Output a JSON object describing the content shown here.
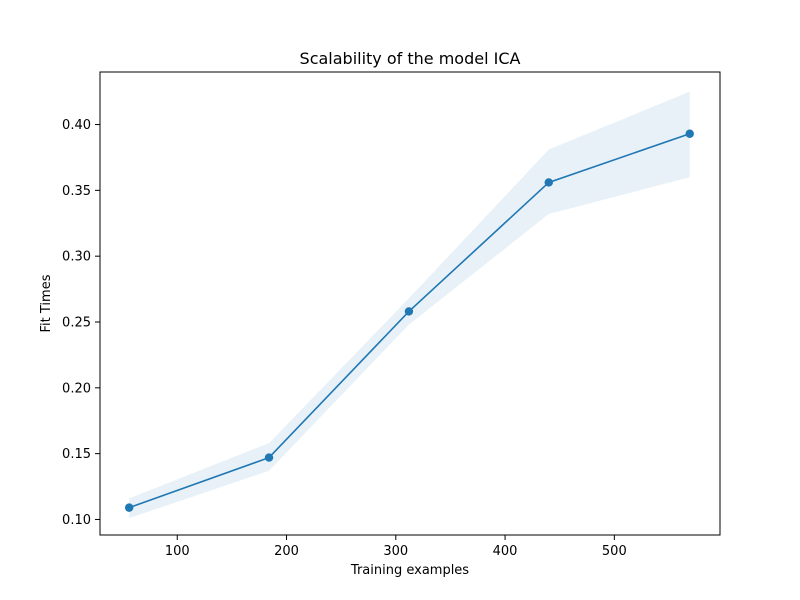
{
  "chart_data": {
    "type": "line",
    "title": "Scalability of the model ICA",
    "xlabel": "Training examples",
    "ylabel": "Fit Times",
    "xlim": [
      29.3,
      596.7
    ],
    "ylim": [
      0.0882,
      0.4399
    ],
    "xticks": [
      100,
      200,
      300,
      400,
      500
    ],
    "xtick_labels": [
      "100",
      "200",
      "300",
      "400",
      "500"
    ],
    "yticks": [
      0.1,
      0.15,
      0.2,
      0.25,
      0.3,
      0.35,
      0.4
    ],
    "ytick_labels": [
      "0.10",
      "0.15",
      "0.20",
      "0.25",
      "0.30",
      "0.35",
      "0.40"
    ],
    "grid": false,
    "series": [
      {
        "x": [
          56,
          184,
          312,
          440,
          569
        ],
        "y": [
          0.109,
          0.147,
          0.258,
          0.356,
          0.393
        ],
        "lower": [
          0.101,
          0.137,
          0.248,
          0.332,
          0.36
        ],
        "upper": [
          0.116,
          0.158,
          0.268,
          0.381,
          0.425
        ],
        "color": "#1f77b4",
        "band_color": "#1f77b4",
        "band_opacity": 0.1,
        "marker": "circle"
      }
    ]
  }
}
